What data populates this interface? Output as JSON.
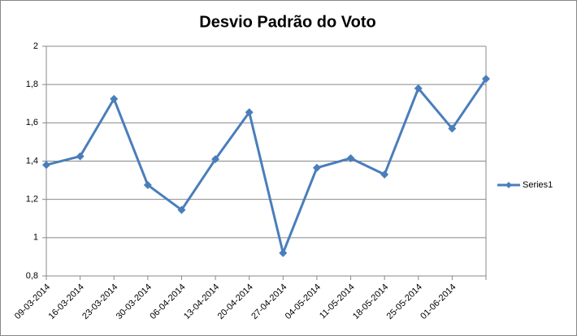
{
  "chart_data": {
    "type": "line",
    "title": "Desvio Padrão do Voto",
    "categories": [
      "09-03-2014",
      "16-03-2014",
      "23-03-2014",
      "30-03-2014",
      "06-04-2014",
      "13-04-2014",
      "20-04-2014",
      "27-04-2014",
      "04-05-2014",
      "11-05-2014",
      "18-05-2014",
      "25-05-2014",
      "01-06-2014",
      null
    ],
    "series": [
      {
        "name": "Series1",
        "color": "#4a7ebb",
        "values": [
          1.38,
          1.425,
          1.725,
          1.275,
          1.145,
          1.41,
          1.655,
          0.92,
          1.365,
          1.415,
          1.33,
          1.78,
          1.57,
          1.83
        ]
      }
    ],
    "ylim": [
      0.8,
      2
    ],
    "yticks": [
      {
        "value": 0.8,
        "label": "0,8"
      },
      1,
      {
        "value": 1.2,
        "label": "1,2"
      },
      {
        "value": 1.4,
        "label": "1,4"
      },
      {
        "value": 1.6,
        "label": "1,6"
      },
      {
        "value": 1.8,
        "label": "1,8"
      },
      2
    ],
    "grid": true,
    "legend": "right"
  }
}
